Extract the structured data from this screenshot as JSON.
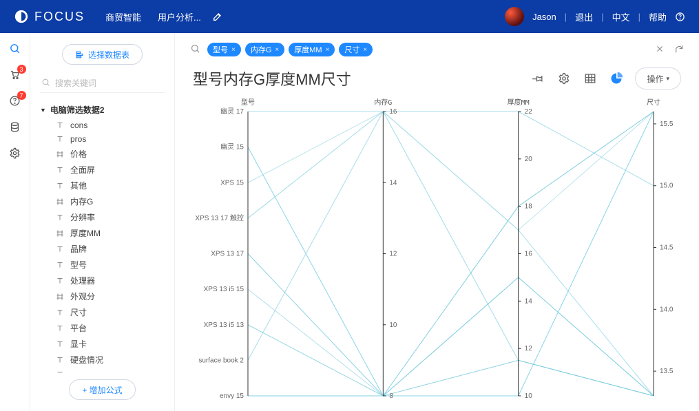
{
  "header": {
    "logo_text": "FOCUS",
    "nav": [
      "商贸智能",
      "用户分析..."
    ],
    "user_name": "Jason",
    "links": {
      "logout": "退出",
      "lang": "中文",
      "help": "帮助"
    }
  },
  "rail": {
    "badges": {
      "cart": "3",
      "help": "7"
    }
  },
  "sidebar": {
    "select_data_btn": "选择数据表",
    "search_placeholder": "搜索关键词",
    "tree_root": "电脑筛选数据2",
    "fields": [
      {
        "label": "cons",
        "icon": "T"
      },
      {
        "label": "pros",
        "icon": "T"
      },
      {
        "label": "价格",
        "icon": "#"
      },
      {
        "label": "全面屏",
        "icon": "T"
      },
      {
        "label": "其他",
        "icon": "T"
      },
      {
        "label": "内存G",
        "icon": "#"
      },
      {
        "label": "分辨率",
        "icon": "T"
      },
      {
        "label": "厚度MM",
        "icon": "#"
      },
      {
        "label": "品牌",
        "icon": "T"
      },
      {
        "label": "型号",
        "icon": "T"
      },
      {
        "label": "处理器",
        "icon": "T"
      },
      {
        "label": "外观分",
        "icon": "#"
      },
      {
        "label": "尺寸",
        "icon": "T"
      },
      {
        "label": "平台",
        "icon": "T"
      },
      {
        "label": "显卡",
        "icon": "T"
      },
      {
        "label": "硬盘情况",
        "icon": "T"
      },
      {
        "label": "·········",
        "icon": "T",
        "dim": true
      }
    ],
    "add_formula_btn": "+  增加公式"
  },
  "query": {
    "chips": [
      "型号",
      "内存G",
      "厚度MM",
      "尺寸"
    ]
  },
  "title": "型号内存G厚度MM尺寸",
  "op_button": "操作",
  "chart": {
    "type": "parallel-coordinates",
    "line_colors": [
      "#8fd4e8",
      "#5fc6dd",
      "#a3dbe6",
      "#7fcfe0",
      "#66c2d9",
      "#99d6e3",
      "#70c8dc",
      "#88d1e4",
      "#5abfd6"
    ],
    "axis_color": "#333333",
    "tick_color": "#666666",
    "background_color": "#ffffff",
    "axes": [
      {
        "key": "model",
        "title": "型号",
        "type": "categorical",
        "domain": [
          "幽灵 17",
          "幽灵 15",
          "XPS 15",
          "XPS 13 17 触控",
          "XPS 13 17",
          "XPS 13 i5 15",
          "XPS 13 i5 13",
          "surface book 2",
          "envy 15"
        ]
      },
      {
        "key": "mem",
        "title": "内存G",
        "type": "numeric",
        "domain": [
          8,
          16
        ],
        "ticks": [
          8,
          10,
          12,
          14,
          16
        ]
      },
      {
        "key": "thick",
        "title": "厚度MM",
        "type": "numeric",
        "domain": [
          10,
          22
        ],
        "step": 2,
        "ticks": [
          10,
          12,
          14,
          16,
          18,
          20,
          22
        ]
      },
      {
        "key": "size",
        "title": "尺寸",
        "type": "numeric",
        "domain": [
          13.3,
          15.6
        ],
        "ticks": [
          13.5,
          14.0,
          14.5,
          15.0,
          15.5
        ]
      }
    ],
    "records": [
      {
        "model": "幽灵 17",
        "mem": 16,
        "thick": 17,
        "size": 13.3
      },
      {
        "model": "幽灵 15",
        "mem": 8,
        "thick": 10,
        "size": 15.6
      },
      {
        "model": "XPS 15",
        "mem": 16,
        "thick": 17,
        "size": 15.6
      },
      {
        "model": "XPS 13 17 触控",
        "mem": 16,
        "thick": 11.5,
        "size": 13.3
      },
      {
        "model": "XPS 13 17",
        "mem": 8,
        "thick": 11.5,
        "size": 13.3
      },
      {
        "model": "XPS 13 i5 15",
        "mem": 8,
        "thick": 15,
        "size": 13.3
      },
      {
        "model": "XPS 13 i5 13",
        "mem": 8,
        "thick": 15,
        "size": 13.3
      },
      {
        "model": "surface book 2",
        "mem": 16,
        "thick": 22,
        "size": 15.0
      },
      {
        "model": "envy 15",
        "mem": 8,
        "thick": 18,
        "size": 15.6
      }
    ]
  }
}
